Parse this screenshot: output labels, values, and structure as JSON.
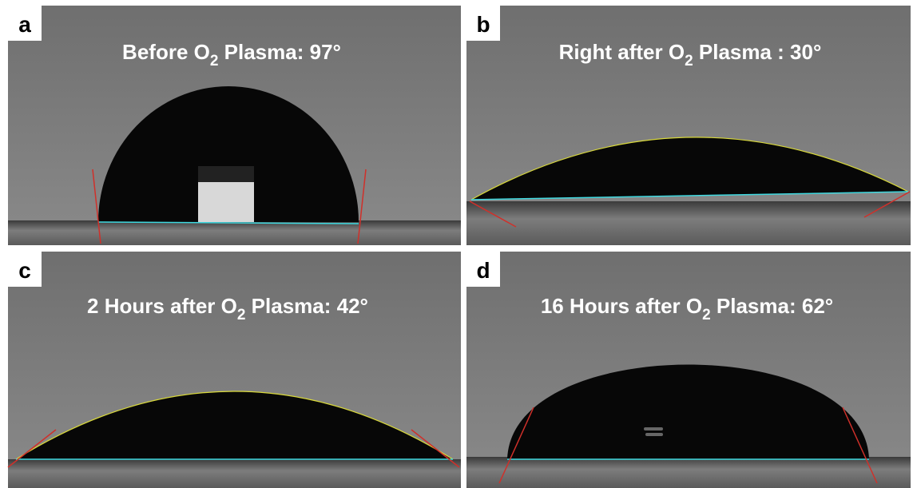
{
  "panels": [
    {
      "label": "a",
      "title": {
        "prefix": "Before O",
        "subscript": "2",
        "suffix": " Plasma: 97°"
      }
    },
    {
      "label": "b",
      "title": {
        "prefix": "Right after O",
        "subscript": "2",
        "suffix": " Plasma : 30°"
      }
    },
    {
      "label": "c",
      "title": {
        "prefix": "2 Hours after O",
        "subscript": "2",
        "suffix": " Plasma: 42°"
      }
    },
    {
      "label": "d",
      "title": {
        "prefix": "16 Hours after O",
        "subscript": "2",
        "suffix": " Plasma: 62°"
      }
    }
  ]
}
